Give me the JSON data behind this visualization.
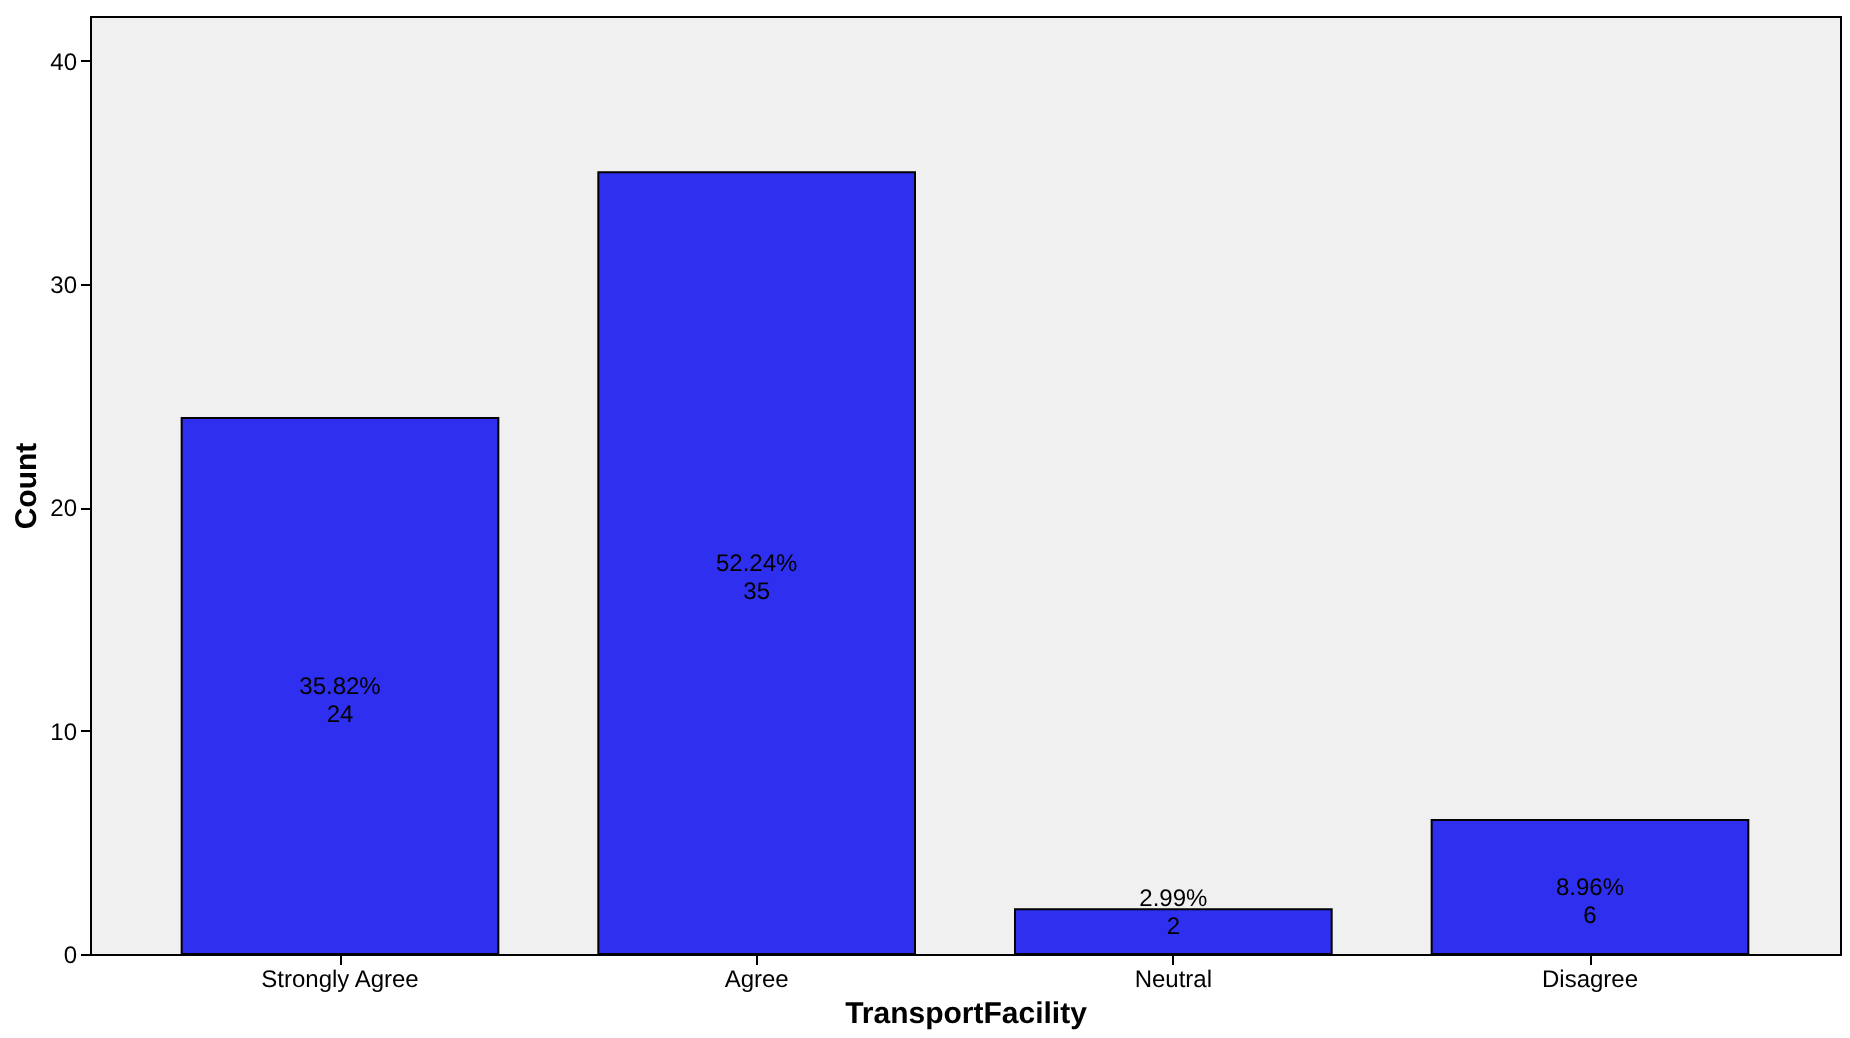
{
  "chart_data": {
    "type": "bar",
    "xlabel": "TransportFacility",
    "ylabel": "Count",
    "categories": [
      "Strongly Agree",
      "Agree",
      "Neutral",
      "Disagree"
    ],
    "values": [
      24,
      35,
      2,
      6
    ],
    "color": "#2f2ff0",
    "value_labels": [
      "35.82%\n24",
      "52.24%\n35",
      "2.99%\n2",
      "8.96%\n6"
    ],
    "ylim": [
      0,
      42
    ],
    "yticks": [
      0,
      10,
      20,
      30,
      40
    ],
    "grid": false
  }
}
